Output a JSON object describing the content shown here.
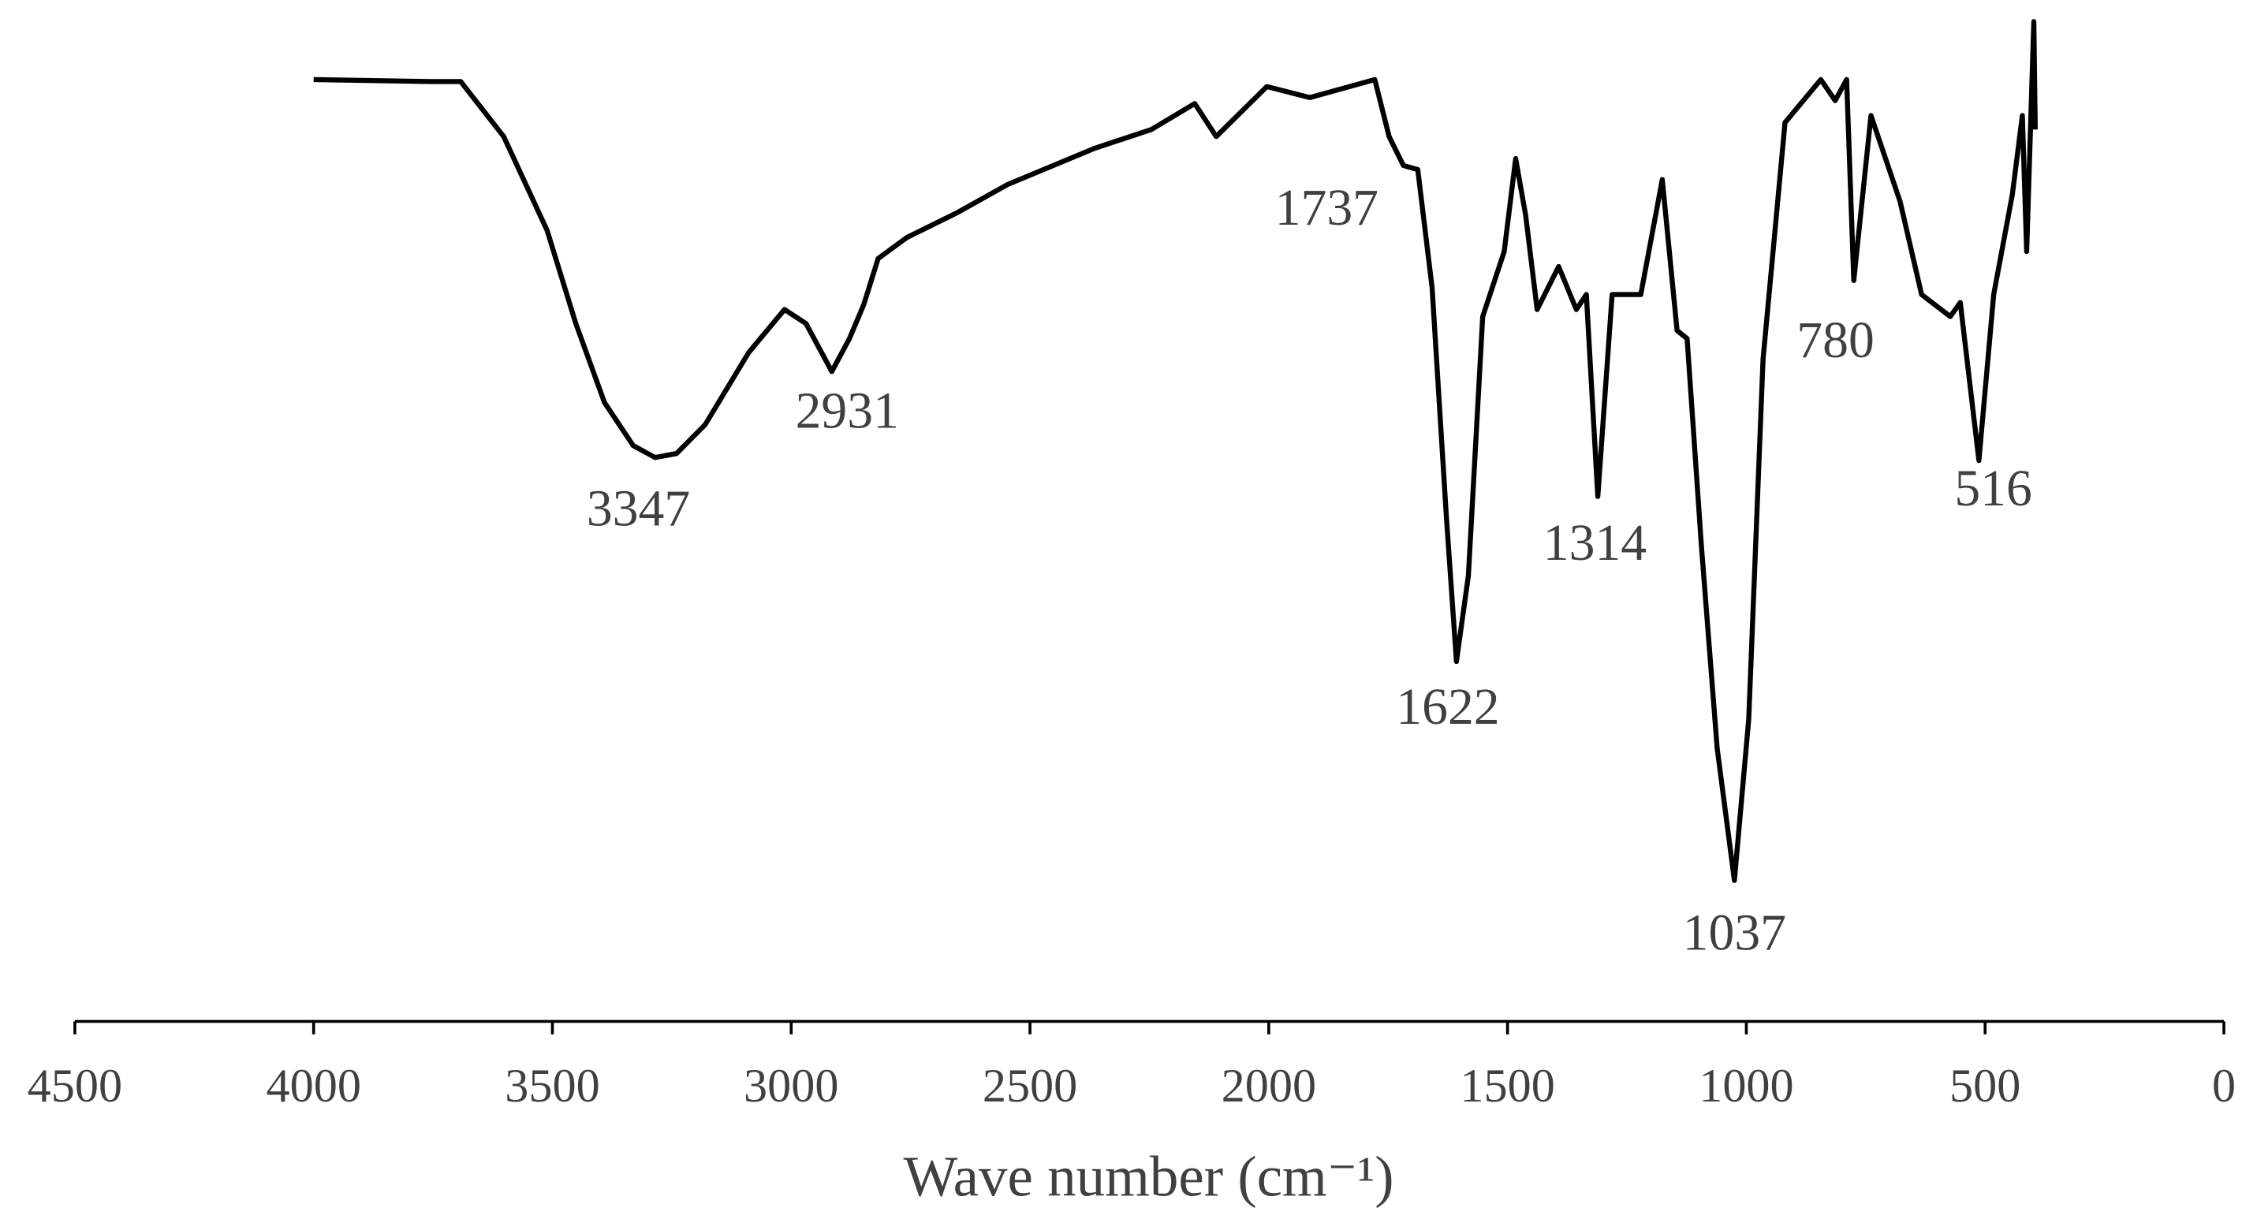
{
  "chart_data": {
    "type": "line",
    "x_label": "Wave number (cm⁻¹)",
    "xlim": [
      4500,
      0
    ],
    "xticks": [
      4500,
      4000,
      3500,
      3000,
      2500,
      2000,
      1500,
      1000,
      500,
      0
    ],
    "ylim": [
      0,
      100
    ],
    "series": [
      {
        "color": "#000000",
        "x": [
          4000,
          3752,
          3692,
          3602,
          3511,
          3451,
          3391,
          3331,
          3285,
          3240,
          3180,
          3089,
          3014,
          2969,
          2915,
          2878,
          2848,
          2818,
          2758,
          2652,
          2547,
          2366,
          2246,
          2155,
          2110,
          2004,
          1914,
          1778,
          1748,
          1718,
          1688,
          1658,
          1628,
          1607,
          1582,
          1552,
          1507,
          1483,
          1462,
          1438,
          1393,
          1356,
          1335,
          1311,
          1281,
          1221,
          1176,
          1145,
          1124,
          1094,
          1061,
          1025,
          995,
          965,
          919,
          844,
          814,
          790,
          775,
          739,
          678,
          633,
          573,
          552,
          513,
          482,
          443,
          422,
          413,
          398,
          395
        ],
        "values": [
          94.2,
          94.0,
          94.0,
          88.5,
          79.1,
          69.8,
          61.9,
          57.6,
          56.4,
          56.8,
          59.7,
          66.9,
          71.2,
          69.8,
          65.0,
          68.3,
          71.7,
          76.3,
          78.4,
          80.9,
          83.7,
          87.3,
          89.2,
          91.8,
          88.5,
          93.5,
          92.4,
          94.2,
          88.5,
          85.6,
          85.2,
          73.4,
          50.4,
          36.0,
          44.6,
          70.5,
          77.0,
          86.3,
          80.6,
          71.2,
          75.5,
          71.2,
          72.7,
          52.5,
          72.7,
          72.7,
          84.2,
          69.1,
          68.3,
          47.5,
          27.3,
          14.1,
          30.2,
          66.2,
          89.9,
          94.2,
          92.1,
          94.2,
          74.1,
          90.6,
          82.0,
          72.7,
          70.5,
          71.9,
          56.1,
          72.7,
          82.7,
          90.6,
          77.0,
          100,
          89.2
        ]
      }
    ],
    "annotations": [
      {
        "text": "3347",
        "x": 3347
      },
      {
        "text": "2931",
        "x": 2931
      },
      {
        "text": "1737",
        "x": 1737
      },
      {
        "text": "1622",
        "x": 1622
      },
      {
        "text": "1314",
        "x": 1314
      },
      {
        "text": "1037",
        "x": 1037
      },
      {
        "text": "780",
        "x": 780
      },
      {
        "text": "516",
        "x": 516
      }
    ]
  }
}
